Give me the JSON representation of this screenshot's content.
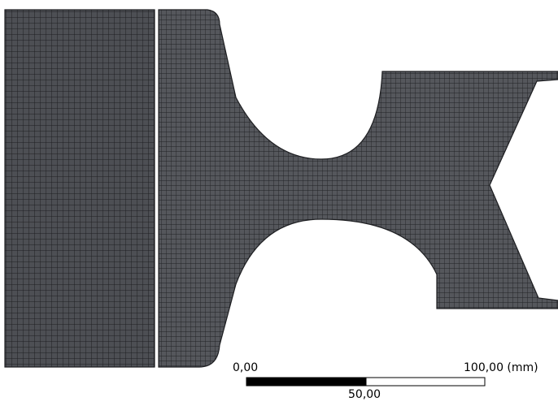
{
  "viewport": {
    "background": "#ffffff",
    "mesh_fill": "#4d4f54",
    "mesh_line_color": "#1e1f22"
  },
  "scale_bar": {
    "label_start": "0,00",
    "label_mid": "50,00",
    "label_end": "100,00 (mm)"
  }
}
